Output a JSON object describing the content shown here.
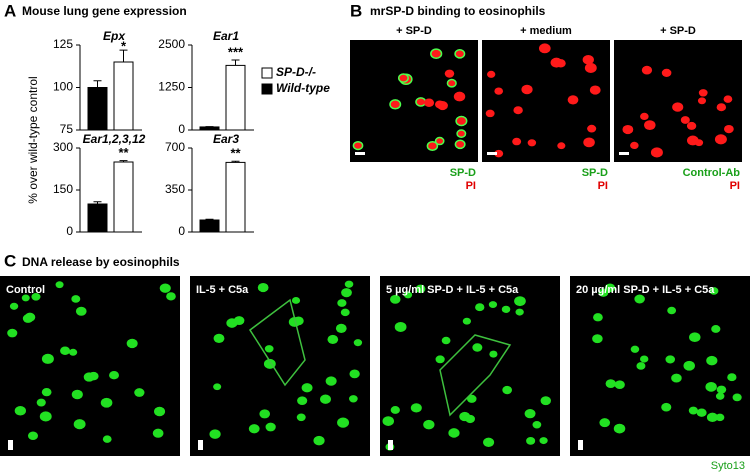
{
  "chart_data": [
    {
      "type": "bar",
      "title": "Epx",
      "annotation": "*",
      "ylim": [
        75,
        125
      ],
      "yticks": [
        75,
        100,
        125
      ],
      "series": [
        {
          "color": "#000000",
          "values": [
            100
          ],
          "errors": [
            4
          ]
        },
        {
          "color": "#ffffff",
          "values": [
            115
          ],
          "errors": [
            7
          ]
        }
      ]
    },
    {
      "type": "bar",
      "title": "Ear1",
      "annotation": "***",
      "ylim": [
        0,
        2500
      ],
      "yticks": [
        0,
        1250,
        2500
      ],
      "legend": "right",
      "series": [
        {
          "name": "Wild-type",
          "color": "#000000",
          "values": [
            90
          ],
          "errors": [
            10
          ]
        },
        {
          "name": "SP-D-/-",
          "color": "#ffffff",
          "values": [
            1900
          ],
          "errors": [
            160
          ]
        }
      ]
    },
    {
      "type": "bar",
      "title": "Ear1,2,3,12",
      "annotation": "**",
      "ylim": [
        0,
        300
      ],
      "yticks": [
        0,
        150,
        300
      ],
      "series": [
        {
          "color": "#000000",
          "values": [
            100
          ],
          "errors": [
            8
          ]
        },
        {
          "color": "#ffffff",
          "values": [
            250
          ],
          "errors": [
            5
          ]
        }
      ]
    },
    {
      "type": "bar",
      "title": "Ear3",
      "annotation": "**",
      "ylim": [
        0,
        700
      ],
      "yticks": [
        0,
        350,
        700
      ],
      "series": [
        {
          "color": "#000000",
          "values": [
            100
          ],
          "errors": [
            6
          ]
        },
        {
          "color": "#ffffff",
          "values": [
            580
          ],
          "errors": [
            10
          ]
        }
      ]
    }
  ],
  "panel_a": {
    "label": "A",
    "title": "Mouse lung gene expression",
    "y_label": "% over wild-type control"
  },
  "panel_b": {
    "label": "B",
    "title": "mrSP-D binding to eosinophils",
    "images": [
      {
        "header": "+ SP-D",
        "stains": [
          "SP-D",
          "PI"
        ]
      },
      {
        "header": "+ medium",
        "stains": [
          "SP-D",
          "PI"
        ]
      },
      {
        "header": "+ SP-D",
        "stains": [
          "Control-Ab",
          "PI"
        ]
      }
    ]
  },
  "panel_c": {
    "label": "C",
    "title": "DNA release by eosinophils",
    "images": [
      {
        "header": "Control"
      },
      {
        "header": "IL-5 + C5a"
      },
      {
        "header": "5 µg/ml SP-D + IL-5 + C5a"
      },
      {
        "header": "20 µg/ml SP-D + IL-5 + C5a"
      }
    ],
    "stain": "Syto13"
  }
}
